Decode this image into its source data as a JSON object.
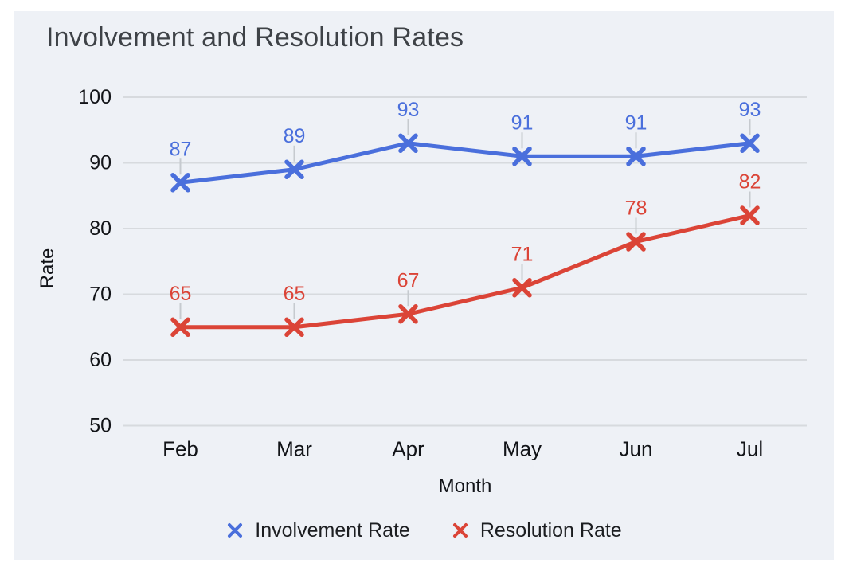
{
  "chart_data": {
    "type": "line",
    "title": "Involvement and Resolution Rates",
    "xlabel": "Month",
    "ylabel": "Rate",
    "categories": [
      "Feb",
      "Mar",
      "Apr",
      "May",
      "Jun",
      "Jul"
    ],
    "series": [
      {
        "name": "Involvement Rate",
        "color": "#4a6fdc",
        "values": [
          87,
          89,
          93,
          91,
          91,
          93
        ]
      },
      {
        "name": "Resolution Rate",
        "color": "#db4437",
        "values": [
          65,
          65,
          67,
          71,
          78,
          82
        ]
      }
    ],
    "ylim": [
      50,
      100
    ],
    "y_ticks": [
      50,
      60,
      70,
      80,
      90,
      100
    ],
    "grid": "horizontal gridlines only",
    "legend_position": "bottom",
    "marker_shape": "x",
    "data_labels_shown": true,
    "colors": {
      "card_background": "#eef1f6",
      "gridline": "#d7dade",
      "label_connector": "#c6cacf",
      "title_text": "#3e4247",
      "tick_text": "#121418"
    }
  }
}
